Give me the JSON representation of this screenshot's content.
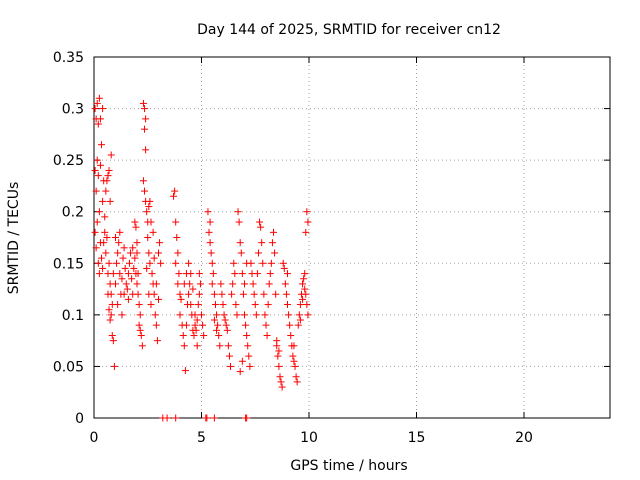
{
  "chart_data": {
    "type": "scatter",
    "title": "Day 144 of 2025, SRMTID for receiver cn12",
    "xlabel": "GPS time / hours",
    "ylabel": "SRMTID / TECUs",
    "xlim": [
      0,
      24
    ],
    "ylim": [
      0,
      0.35
    ],
    "xticks": [
      0,
      5,
      10,
      15,
      20
    ],
    "yticks": [
      0,
      0.05,
      0.1,
      0.15,
      0.2,
      0.25,
      0.3,
      0.35
    ],
    "xtick_labels": [
      "0",
      "5",
      "10",
      "15",
      "20"
    ],
    "ytick_labels": [
      "0",
      "0.05",
      "0.1",
      "0.15",
      "0.2",
      "0.25",
      "0.3",
      "0.35"
    ],
    "grid": true,
    "marker": "+",
    "marker_color": "#ff0000",
    "series": [
      {
        "name": "SRMTID",
        "points": [
          [
            0.05,
            0.3
          ],
          [
            0.1,
            0.29
          ],
          [
            0.15,
            0.305
          ],
          [
            0.2,
            0.285
          ],
          [
            0.25,
            0.31
          ],
          [
            0.3,
            0.29
          ],
          [
            0.35,
            0.265
          ],
          [
            0.4,
            0.3
          ],
          [
            0.05,
            0.24
          ],
          [
            0.1,
            0.22
          ],
          [
            0.15,
            0.25
          ],
          [
            0.2,
            0.235
          ],
          [
            0.25,
            0.2
          ],
          [
            0.3,
            0.245
          ],
          [
            0.4,
            0.21
          ],
          [
            0.45,
            0.23
          ],
          [
            0.05,
            0.18
          ],
          [
            0.1,
            0.165
          ],
          [
            0.15,
            0.19
          ],
          [
            0.2,
            0.15
          ],
          [
            0.25,
            0.14
          ],
          [
            0.3,
            0.17
          ],
          [
            0.35,
            0.155
          ],
          [
            0.4,
            0.145
          ],
          [
            0.5,
            0.18
          ],
          [
            0.55,
            0.16
          ],
          [
            0.6,
            0.175
          ],
          [
            0.65,
            0.14
          ],
          [
            0.7,
            0.15
          ],
          [
            0.75,
            0.13
          ],
          [
            0.8,
            0.12
          ],
          [
            0.85,
            0.11
          ],
          [
            0.6,
            0.23
          ],
          [
            0.65,
            0.235
          ],
          [
            0.7,
            0.24
          ],
          [
            0.75,
            0.21
          ],
          [
            0.8,
            0.255
          ],
          [
            0.5,
            0.195
          ],
          [
            0.55,
            0.22
          ],
          [
            0.45,
            0.17
          ],
          [
            0.8,
            0.1
          ],
          [
            0.85,
            0.08
          ],
          [
            0.9,
            0.075
          ],
          [
            0.95,
            0.05
          ],
          [
            0.75,
            0.095
          ],
          [
            0.7,
            0.105
          ],
          [
            0.65,
            0.12
          ],
          [
            0.9,
            0.14
          ],
          [
            1.0,
            0.13
          ],
          [
            1.05,
            0.15
          ],
          [
            1.1,
            0.16
          ],
          [
            1.15,
            0.17
          ],
          [
            1.2,
            0.14
          ],
          [
            1.25,
            0.12
          ],
          [
            1.3,
            0.135
          ],
          [
            1.35,
            0.155
          ],
          [
            1.4,
            0.165
          ],
          [
            1.45,
            0.145
          ],
          [
            1.5,
            0.13
          ],
          [
            1.55,
            0.125
          ],
          [
            1.6,
            0.14
          ],
          [
            1.65,
            0.15
          ],
          [
            1.7,
            0.16
          ],
          [
            1.75,
            0.135
          ],
          [
            1.8,
            0.12
          ],
          [
            1.85,
            0.145
          ],
          [
            1.9,
            0.155
          ],
          [
            1.95,
            0.14
          ],
          [
            2.0,
            0.13
          ],
          [
            2.05,
            0.12
          ],
          [
            2.1,
            0.11
          ],
          [
            2.15,
            0.1
          ],
          [
            1.0,
            0.175
          ],
          [
            1.2,
            0.18
          ],
          [
            1.4,
            0.12
          ],
          [
            1.6,
            0.115
          ],
          [
            1.8,
            0.165
          ],
          [
            2.0,
            0.17
          ],
          [
            1.1,
            0.11
          ],
          [
            1.3,
            0.1
          ],
          [
            1.9,
            0.19
          ],
          [
            1.95,
            0.185
          ],
          [
            2.0,
            0.16
          ],
          [
            2.05,
            0.14
          ],
          [
            2.1,
            0.09
          ],
          [
            2.15,
            0.085
          ],
          [
            2.2,
            0.08
          ],
          [
            2.25,
            0.07
          ],
          [
            2.3,
            0.305
          ],
          [
            2.35,
            0.3
          ],
          [
            2.4,
            0.29
          ],
          [
            2.35,
            0.28
          ],
          [
            2.4,
            0.26
          ],
          [
            2.3,
            0.23
          ],
          [
            2.35,
            0.22
          ],
          [
            2.4,
            0.21
          ],
          [
            2.45,
            0.2
          ],
          [
            2.5,
            0.19
          ],
          [
            2.55,
            0.205
          ],
          [
            2.6,
            0.21
          ],
          [
            2.65,
            0.19
          ],
          [
            2.5,
            0.175
          ],
          [
            2.55,
            0.16
          ],
          [
            2.6,
            0.15
          ],
          [
            2.7,
            0.14
          ],
          [
            2.75,
            0.13
          ],
          [
            2.8,
            0.12
          ],
          [
            2.85,
            0.1
          ],
          [
            2.9,
            0.09
          ],
          [
            2.95,
            0.075
          ],
          [
            3.0,
            0.16
          ],
          [
            3.05,
            0.17
          ],
          [
            3.1,
            0.15
          ],
          [
            2.75,
            0.18
          ],
          [
            2.8,
            0.155
          ],
          [
            2.9,
            0.13
          ],
          [
            3.0,
            0.115
          ],
          [
            2.45,
            0.145
          ],
          [
            2.55,
            0.12
          ],
          [
            2.65,
            0.11
          ],
          [
            3.7,
            0.215
          ],
          [
            3.75,
            0.22
          ],
          [
            3.8,
            0.19
          ],
          [
            3.85,
            0.175
          ],
          [
            3.9,
            0.16
          ],
          [
            3.95,
            0.14
          ],
          [
            4.0,
            0.12
          ],
          [
            4.05,
            0.115
          ],
          [
            3.8,
            0.15
          ],
          [
            3.9,
            0.13
          ],
          [
            4.0,
            0.1
          ],
          [
            4.1,
            0.09
          ],
          [
            4.15,
            0.08
          ],
          [
            4.2,
            0.07
          ],
          [
            4.25,
            0.046
          ],
          [
            4.3,
            0.09
          ],
          [
            4.35,
            0.11
          ],
          [
            4.4,
            0.12
          ],
          [
            4.45,
            0.13
          ],
          [
            4.5,
            0.14
          ],
          [
            4.55,
            0.1
          ],
          [
            4.6,
            0.085
          ],
          [
            4.65,
            0.08
          ],
          [
            4.7,
            0.09
          ],
          [
            4.75,
            0.085
          ],
          [
            4.8,
            0.095
          ],
          [
            4.85,
            0.11
          ],
          [
            4.9,
            0.12
          ],
          [
            4.95,
            0.13
          ],
          [
            5.0,
            0.1
          ],
          [
            5.05,
            0.09
          ],
          [
            5.1,
            0.08
          ],
          [
            4.3,
            0.14
          ],
          [
            4.5,
            0.11
          ],
          [
            4.7,
            0.1
          ],
          [
            4.9,
            0.14
          ],
          [
            4.2,
            0.13
          ],
          [
            4.4,
            0.15
          ],
          [
            4.6,
            0.125
          ],
          [
            4.8,
            0.07
          ],
          [
            5.3,
            0.2
          ],
          [
            5.35,
            0.18
          ],
          [
            5.4,
            0.17
          ],
          [
            5.45,
            0.16
          ],
          [
            5.5,
            0.15
          ],
          [
            5.55,
            0.14
          ],
          [
            5.6,
            0.12
          ],
          [
            5.65,
            0.11
          ],
          [
            5.7,
            0.1
          ],
          [
            5.75,
            0.09
          ],
          [
            5.8,
            0.08
          ],
          [
            5.85,
            0.07
          ],
          [
            5.4,
            0.19
          ],
          [
            5.5,
            0.13
          ],
          [
            5.6,
            0.095
          ],
          [
            5.7,
            0.085
          ],
          [
            5.9,
            0.13
          ],
          [
            5.95,
            0.12
          ],
          [
            6.0,
            0.11
          ],
          [
            6.05,
            0.1
          ],
          [
            6.1,
            0.095
          ],
          [
            6.15,
            0.09
          ],
          [
            6.2,
            0.085
          ],
          [
            6.25,
            0.07
          ],
          [
            6.3,
            0.06
          ],
          [
            6.35,
            0.05
          ],
          [
            6.4,
            0.12
          ],
          [
            6.45,
            0.13
          ],
          [
            6.5,
            0.15
          ],
          [
            6.55,
            0.14
          ],
          [
            6.6,
            0.11
          ],
          [
            6.65,
            0.1
          ],
          [
            6.7,
            0.2
          ],
          [
            6.75,
            0.19
          ],
          [
            6.8,
            0.17
          ],
          [
            6.85,
            0.16
          ],
          [
            6.9,
            0.14
          ],
          [
            6.95,
            0.12
          ],
          [
            7.0,
            0.1
          ],
          [
            7.05,
            0.09
          ],
          [
            7.1,
            0.08
          ],
          [
            7.15,
            0.07
          ],
          [
            7.2,
            0.06
          ],
          [
            7.25,
            0.05
          ],
          [
            6.8,
            0.045
          ],
          [
            6.9,
            0.055
          ],
          [
            7.0,
            0.13
          ],
          [
            7.1,
            0.15
          ],
          [
            7.3,
            0.15
          ],
          [
            7.35,
            0.14
          ],
          [
            7.4,
            0.13
          ],
          [
            7.45,
            0.12
          ],
          [
            7.5,
            0.11
          ],
          [
            7.55,
            0.1
          ],
          [
            7.6,
            0.14
          ],
          [
            7.65,
            0.16
          ],
          [
            7.7,
            0.19
          ],
          [
            7.75,
            0.185
          ],
          [
            7.8,
            0.17
          ],
          [
            7.85,
            0.15
          ],
          [
            7.9,
            0.12
          ],
          [
            7.95,
            0.1
          ],
          [
            8.0,
            0.09
          ],
          [
            8.05,
            0.08
          ],
          [
            8.1,
            0.11
          ],
          [
            8.15,
            0.13
          ],
          [
            8.2,
            0.14
          ],
          [
            8.25,
            0.15
          ],
          [
            8.3,
            0.17
          ],
          [
            8.35,
            0.18
          ],
          [
            8.4,
            0.16
          ],
          [
            8.45,
            0.12
          ],
          [
            8.5,
            0.07
          ],
          [
            8.55,
            0.06
          ],
          [
            8.6,
            0.05
          ],
          [
            8.65,
            0.04
          ],
          [
            8.7,
            0.035
          ],
          [
            8.75,
            0.03
          ],
          [
            8.5,
            0.075
          ],
          [
            8.6,
            0.065
          ],
          [
            8.8,
            0.15
          ],
          [
            8.85,
            0.145
          ],
          [
            8.9,
            0.13
          ],
          [
            8.95,
            0.12
          ],
          [
            9.0,
            0.11
          ],
          [
            9.05,
            0.1
          ],
          [
            9.1,
            0.09
          ],
          [
            9.15,
            0.08
          ],
          [
            9.2,
            0.07
          ],
          [
            9.25,
            0.06
          ],
          [
            9.3,
            0.055
          ],
          [
            9.35,
            0.05
          ],
          [
            9.4,
            0.04
          ],
          [
            9.45,
            0.035
          ],
          [
            9.5,
            0.09
          ],
          [
            9.55,
            0.1
          ],
          [
            9.6,
            0.11
          ],
          [
            9.65,
            0.12
          ],
          [
            9.7,
            0.13
          ],
          [
            9.75,
            0.135
          ],
          [
            9.8,
            0.14
          ],
          [
            9.85,
            0.12
          ],
          [
            9.9,
            0.11
          ],
          [
            9.95,
            0.1
          ],
          [
            9.9,
            0.2
          ],
          [
            9.95,
            0.19
          ],
          [
            9.85,
            0.18
          ],
          [
            9.6,
            0.095
          ],
          [
            9.7,
            0.115
          ],
          [
            9.8,
            0.125
          ],
          [
            9.3,
            0.07
          ],
          [
            9.0,
            0.14
          ],
          [
            3.2,
            0.0
          ],
          [
            3.4,
            0.0
          ],
          [
            3.8,
            0.0
          ],
          [
            5.2,
            0.0
          ],
          [
            5.25,
            0.0
          ],
          [
            5.6,
            0.0
          ],
          [
            7.05,
            0.0
          ],
          [
            7.1,
            0.0
          ]
        ]
      }
    ]
  }
}
